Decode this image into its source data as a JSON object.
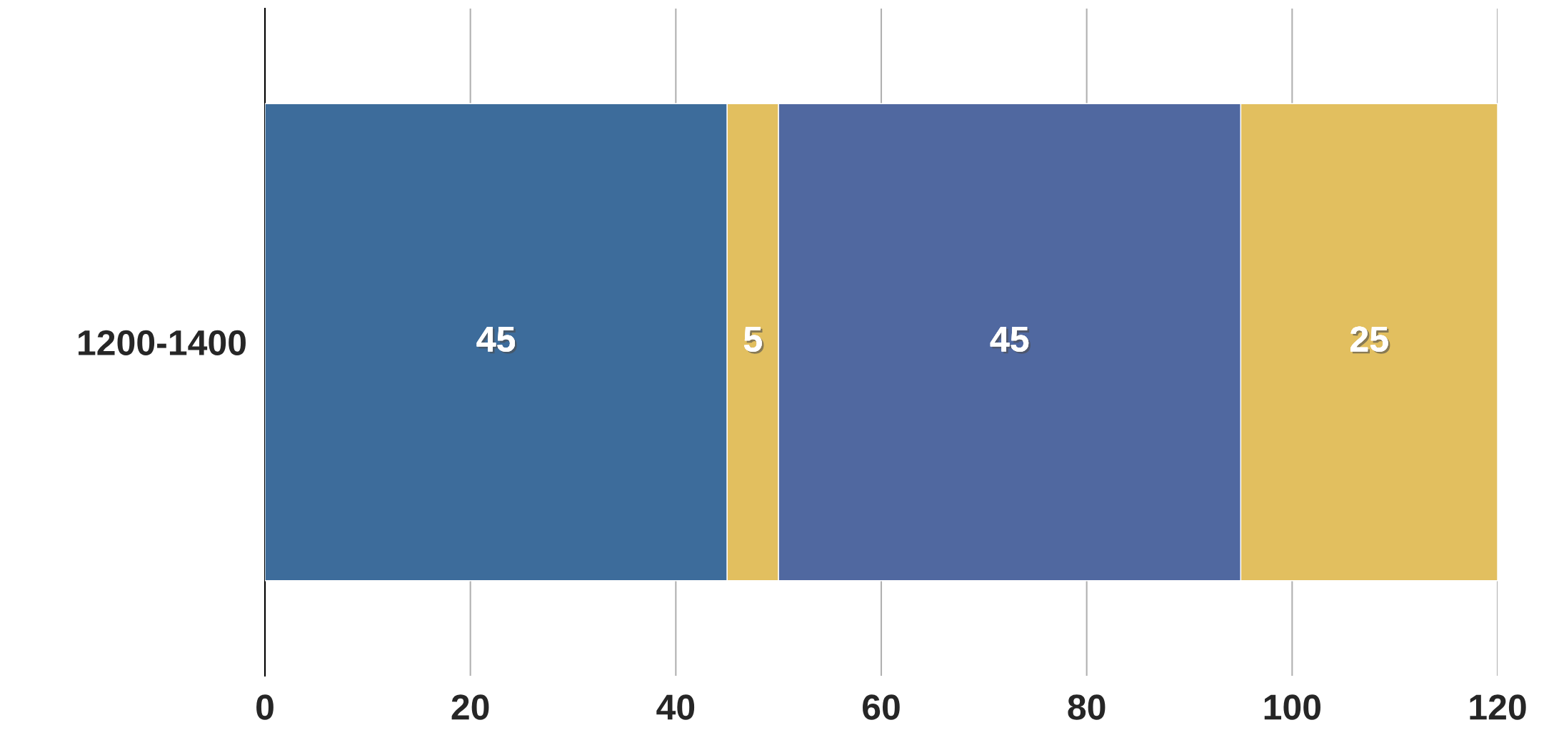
{
  "chart_data": {
    "type": "bar",
    "orientation": "horizontal",
    "stacked": true,
    "categories": [
      "1200-1400"
    ],
    "series": [
      {
        "color": "#3d6c9b",
        "values": [
          45
        ]
      },
      {
        "color": "#e2bf5f",
        "values": [
          5
        ]
      },
      {
        "color": "#5068a0",
        "values": [
          45
        ]
      },
      {
        "color": "#e2bf5f",
        "values": [
          25
        ]
      }
    ],
    "xlim": [
      0,
      120
    ],
    "xticks": [
      0,
      20,
      40,
      60,
      80,
      100,
      120
    ],
    "grid": "x",
    "data_labels": true,
    "legend": false
  }
}
